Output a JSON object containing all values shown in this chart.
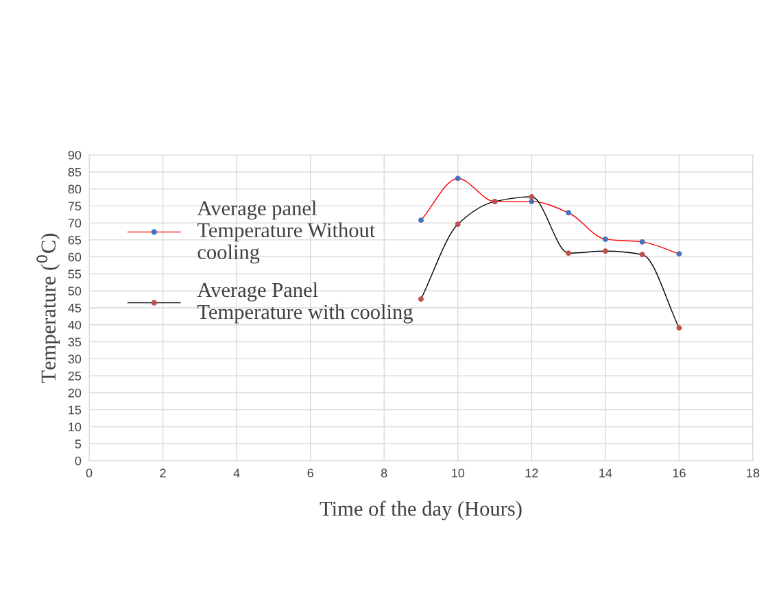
{
  "chart_data": {
    "type": "line",
    "xlabel": "Time of the day (Hours)",
    "ylabel": "Temperature ($^{0}$C)",
    "xlim": [
      0,
      18
    ],
    "xticks": [
      0,
      2,
      4,
      6,
      8,
      10,
      12,
      14,
      16,
      18
    ],
    "ylim": [
      0,
      90
    ],
    "yticks": [
      0,
      5,
      10,
      15,
      20,
      25,
      30,
      35,
      40,
      45,
      50,
      55,
      60,
      65,
      70,
      75,
      80,
      85,
      90
    ],
    "grid": true,
    "legend": "left",
    "marker": "circle",
    "line_style": "solid",
    "x": [
      9,
      10,
      11,
      12,
      13,
      14,
      15,
      16
    ],
    "series": [
      {
        "name": "Average panel Temperature Without cooling",
        "color": "#ff0000",
        "colors": [
          "#4472c4",
          "#4472c4",
          "#4472c4",
          "#4472c4",
          "#4472c4",
          "#4472c4",
          "#4472c4",
          "#4472c4"
        ],
        "values": [
          70.8,
          83.1,
          76.3,
          76.3,
          73.0,
          65.2,
          64.4,
          60.9
        ]
      },
      {
        "name": "Average Panel Temperature with cooling",
        "color": "#000000",
        "colors": [
          "#c0504d",
          "#c0504d",
          "#c0504d",
          "#c0504d",
          "#c0504d",
          "#c0504d",
          "#c0504d",
          "#c0504d"
        ],
        "values": [
          47.6,
          69.6,
          76.3,
          77.7,
          61.1,
          61.7,
          60.7,
          39.1
        ]
      }
    ]
  }
}
